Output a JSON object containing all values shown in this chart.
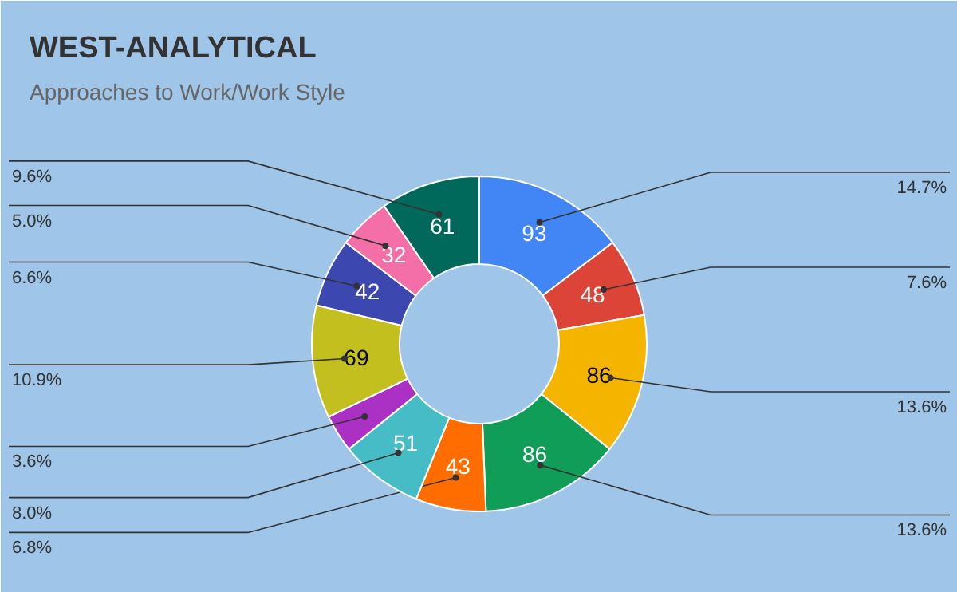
{
  "chart_data": {
    "type": "donut",
    "title": "WEST-ANALYTICAL",
    "subtitle": "Approaches to Work/Work Style",
    "categories": [
      null,
      null,
      null,
      null,
      null,
      null,
      null,
      null,
      null,
      null,
      null
    ],
    "values": [
      93,
      48,
      86,
      86,
      43,
      51,
      23,
      69,
      42,
      32,
      61
    ],
    "value_labels": [
      "93",
      "48",
      "86",
      "86",
      "43",
      "51",
      null,
      "69",
      "42",
      "32",
      "61"
    ],
    "colors": [
      "#4285f4",
      "#db4437",
      "#f4b400",
      "#0f9d58",
      "#ff6d00",
      "#46bdc6",
      "#ab30c4",
      "#c2bf1e",
      "#3c48b0",
      "#f46fa8",
      "#00695c"
    ],
    "annotations": [
      "14.7%",
      "7.6%",
      "13.6%",
      "13.6%",
      "6.8%",
      "8.0%",
      "3.6%",
      "10.9%",
      "6.6%",
      "5.0%",
      "9.6%"
    ]
  }
}
